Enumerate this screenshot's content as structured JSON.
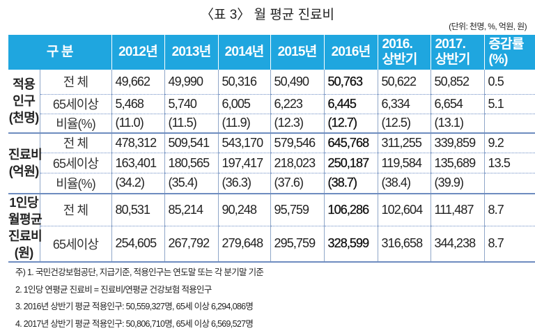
{
  "title": "〈표 3〉 월 평균 진료비",
  "unit": "(단위: 천명, %, 억원, 원)",
  "headers": [
    "구 분",
    "2012년",
    "2013년",
    "2014년",
    "2015년",
    "2016년",
    "2016. 상반기",
    "2017. 상반기",
    "증감률 (%)"
  ],
  "groups": [
    {
      "label": "적용 인구 (천명)",
      "rows": [
        {
          "sub": "전 체",
          "values": [
            "49,662",
            "49,990",
            "50,316",
            "50,490",
            "50,763",
            "50,622",
            "50,852",
            "0.5"
          ]
        },
        {
          "sub": "65세이상",
          "values": [
            "5,468",
            "5,740",
            "6,005",
            "6,223",
            "6,445",
            "6,334",
            "6,654",
            "5.1"
          ]
        },
        {
          "sub": "비율(%)",
          "values": [
            "(11.0)",
            "(11.5)",
            "(11.9)",
            "(12.3)",
            "(12.7)",
            "(12.5)",
            "(13.1)",
            ""
          ]
        }
      ]
    },
    {
      "label": "진료비 (억원)",
      "rows": [
        {
          "sub": "전 체",
          "values": [
            "478,312",
            "509,541",
            "543,170",
            "579,546",
            "645,768",
            "311,255",
            "339,859",
            "9.2"
          ]
        },
        {
          "sub": "65세이상",
          "values": [
            "163,401",
            "180,565",
            "197,417",
            "218,023",
            "250,187",
            "119,584",
            "135,689",
            "13.5"
          ]
        },
        {
          "sub": "비율(%)",
          "values": [
            "(34.2)",
            "(35.4)",
            "(36.3)",
            "(37.6)",
            "(38.7)",
            "(38.4)",
            "(39.9)",
            ""
          ]
        }
      ]
    },
    {
      "label": "1인당 월평균 진료비 (원)",
      "rows": [
        {
          "sub": "전 체",
          "values": [
            "80,531",
            "85,214",
            "90,248",
            "95,759",
            "106,286",
            "102,604",
            "111,487",
            "8.7"
          ]
        },
        {
          "sub": "65세이상",
          "values": [
            "254,605",
            "267,792",
            "279,648",
            "295,759",
            "328,599",
            "316,658",
            "344,238",
            "8.7"
          ]
        }
      ]
    }
  ],
  "notes": [
    "주) 1. 국민건강보험공단, 지급기준, 적용인구는 연도말 또는 각 분기말 기준",
    "2. 1인당 연평균 진료비 = 진료비/연평균 건강보험 적용인구",
    "3. 2016년 상반기 평균 적용인구: 50,559,327명, 65세 이상 6,294,086명",
    "4. 2017년 상반기 평균 적용인구: 50,806,710명, 65세 이상 6,569,527명"
  ]
}
